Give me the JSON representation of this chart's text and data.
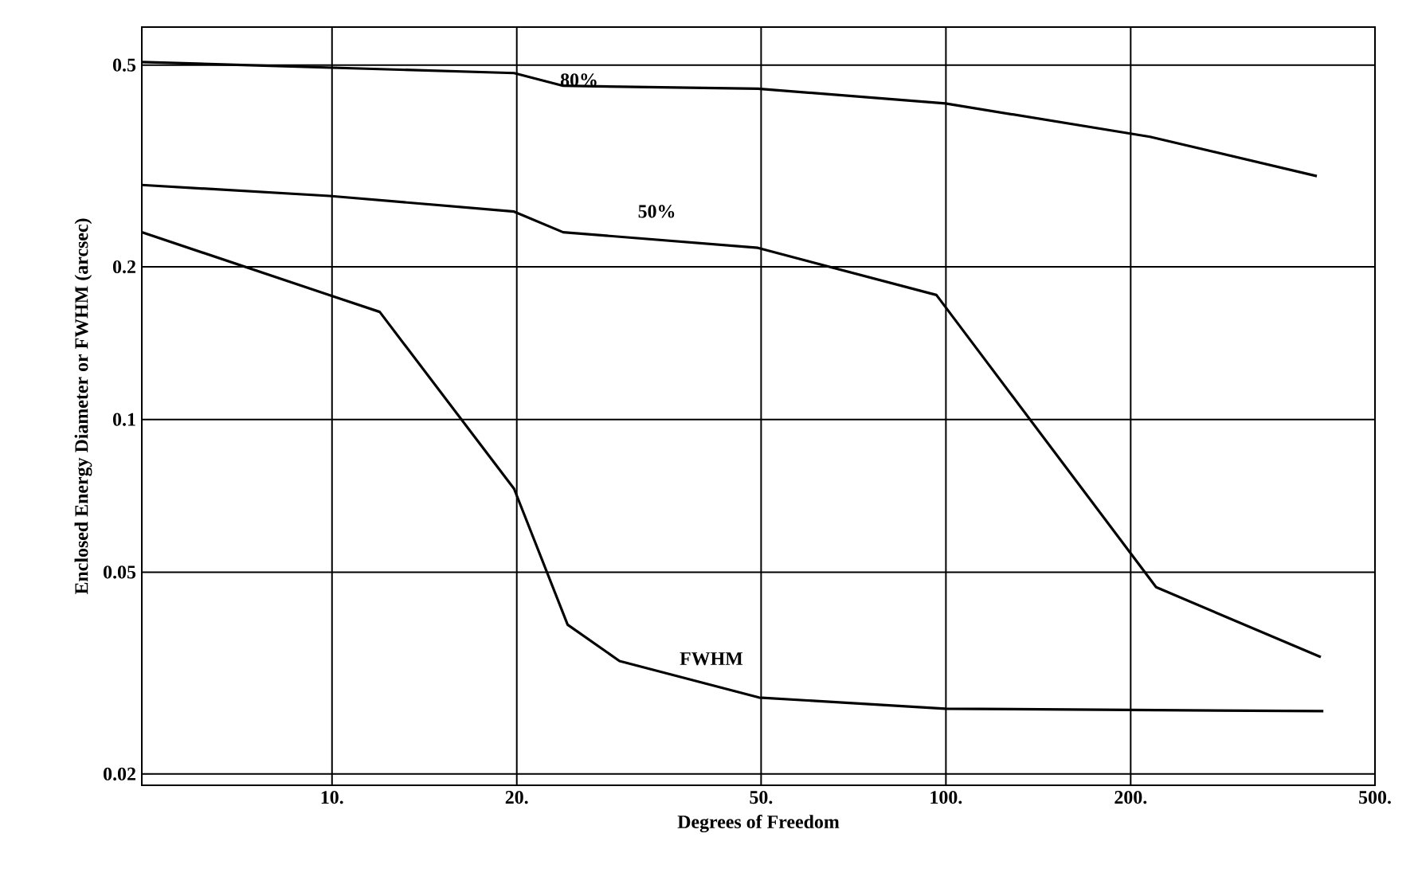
{
  "chart_data": {
    "type": "line",
    "xlabel": "Degrees of Freedom",
    "ylabel": "Enclosed Energy Diameter or FWHM (arcsec)",
    "log": "xy",
    "grid": true,
    "xlim": [
      4.9,
      500
    ],
    "ylim": [
      0.019,
      0.594
    ],
    "xticks": [
      {
        "value": 10,
        "label": "10."
      },
      {
        "value": 20,
        "label": "20."
      },
      {
        "value": 50,
        "label": "50."
      },
      {
        "value": 100,
        "label": "100."
      },
      {
        "value": 200,
        "label": "200."
      },
      {
        "value": 500,
        "label": "500."
      }
    ],
    "yticks": [
      0.02,
      0.05,
      0.1,
      0.2,
      0.5
    ],
    "series": [
      {
        "name": "80%",
        "color": "#000000",
        "x": [
          4.9,
          19.8,
          23.8,
          49.4,
          99.8,
          215,
          402
        ],
        "values": [
          0.507,
          0.482,
          0.455,
          0.449,
          0.42,
          0.361,
          0.302
        ]
      },
      {
        "name": "50%",
        "color": "#000000",
        "x": [
          4.9,
          9.9,
          19.8,
          23.8,
          49.4,
          96.5,
          220,
          408
        ],
        "values": [
          0.29,
          0.276,
          0.257,
          0.234,
          0.218,
          0.176,
          0.0467,
          0.034
        ]
      },
      {
        "name": "FWHM",
        "color": "#000000",
        "x": [
          4.9,
          9.9,
          11.96,
          19.8,
          24.2,
          29.4,
          49.6,
          99.8,
          412
        ],
        "values": [
          0.234,
          0.176,
          0.163,
          0.073,
          0.0394,
          0.0334,
          0.0283,
          0.0269,
          0.0266
        ]
      }
    ]
  }
}
